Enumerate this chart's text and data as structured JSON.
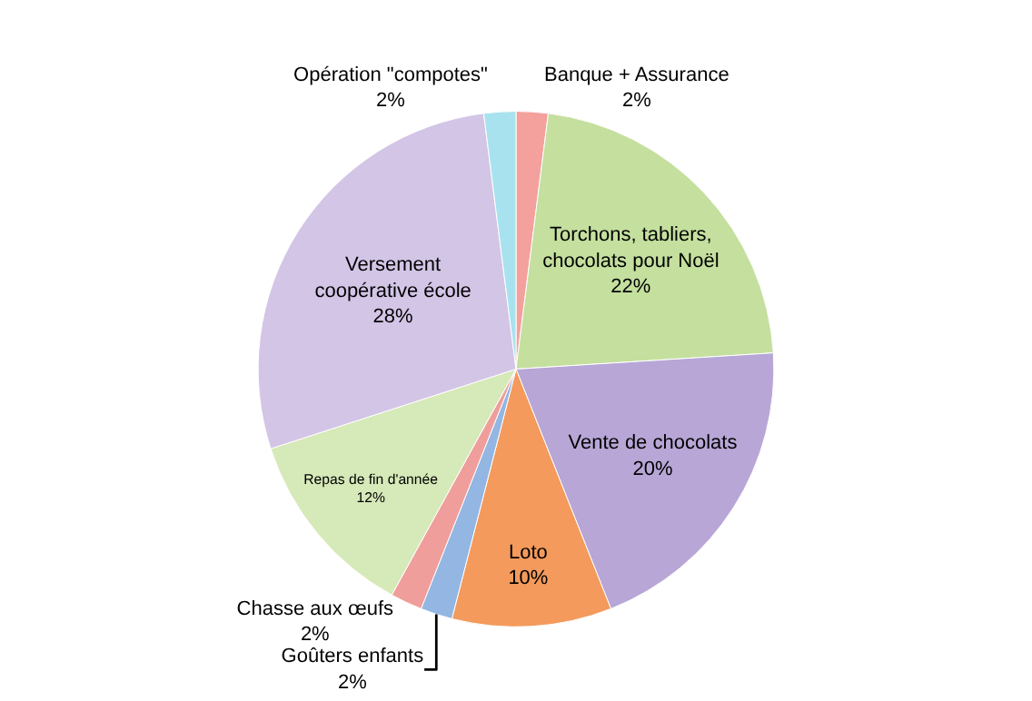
{
  "chart_data": {
    "type": "pie",
    "categories": [
      "Banque + Assurance",
      "Torchons, tabliers, chocolats pour Noël",
      "Vente de chocolats",
      "Loto",
      "Goûters enfants",
      "Chasse aux œufs",
      "Repas de fin d'année",
      "Versement coopérative école",
      "Opération \"compotes\""
    ],
    "values": [
      2,
      22,
      20,
      10,
      2,
      2,
      12,
      28,
      2
    ],
    "value_labels": [
      "2%",
      "22%",
      "20%",
      "10%",
      "2%",
      "2%",
      "12%",
      "28%",
      "2%"
    ],
    "colors": [
      "#f4a09c",
      "#c4df9e",
      "#b7a6d6",
      "#f39a5c",
      "#93b6e2",
      "#ef9e9c",
      "#d6e9b8",
      "#d3c5e6",
      "#a8e2ee"
    ],
    "legend": false
  }
}
